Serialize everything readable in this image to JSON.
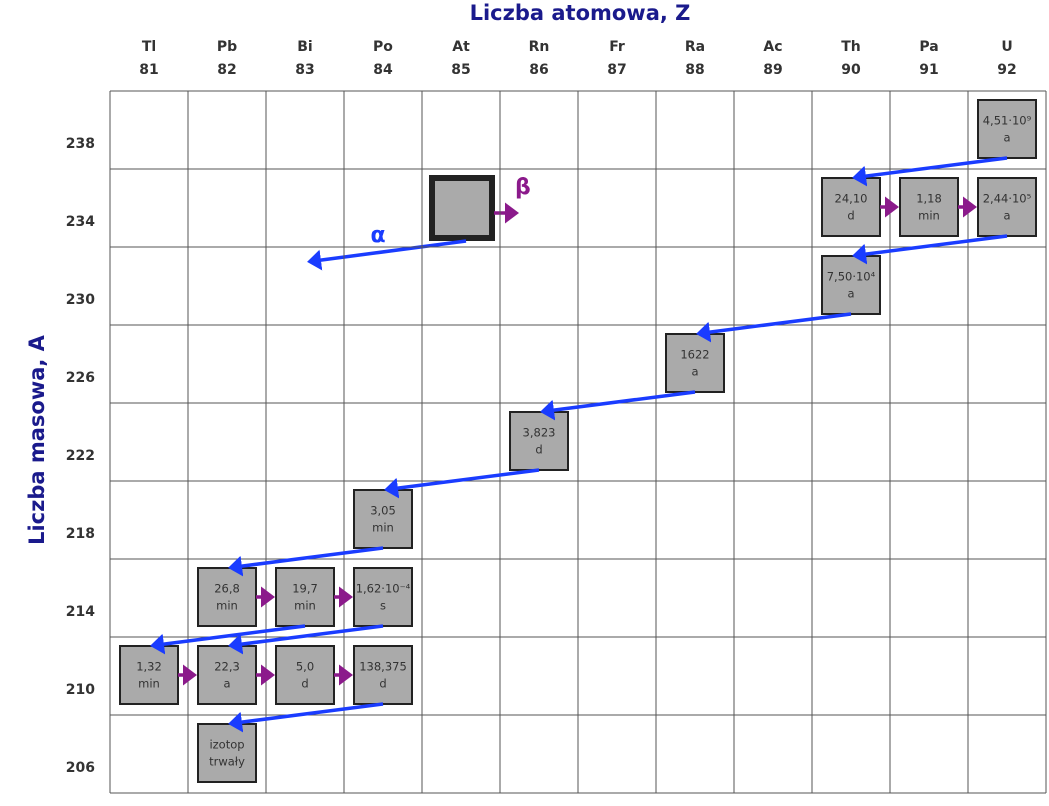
{
  "axis_x_title": "Liczba atomowa, Z",
  "axis_y_title": "Liczba masowa, A",
  "columns": [
    {
      "symbol": "Tl",
      "z": "81"
    },
    {
      "symbol": "Pb",
      "z": "82"
    },
    {
      "symbol": "Bi",
      "z": "83"
    },
    {
      "symbol": "Po",
      "z": "84"
    },
    {
      "symbol": "At",
      "z": "85"
    },
    {
      "symbol": "Rn",
      "z": "86"
    },
    {
      "symbol": "Fr",
      "z": "87"
    },
    {
      "symbol": "Ra",
      "z": "88"
    },
    {
      "symbol": "Ac",
      "z": "89"
    },
    {
      "symbol": "Th",
      "z": "90"
    },
    {
      "symbol": "Pa",
      "z": "91"
    },
    {
      "symbol": "U",
      "z": "92"
    }
  ],
  "rows": [
    "238",
    "234",
    "230",
    "226",
    "222",
    "218",
    "214",
    "210",
    "206"
  ],
  "nodes": [
    {
      "lines": [
        "4,51·10⁹",
        "a"
      ]
    },
    {
      "lines": [
        "24,10",
        "d"
      ]
    },
    {
      "lines": [
        "1,18",
        "min"
      ]
    },
    {
      "lines": [
        "2,44·10⁵",
        "a"
      ]
    },
    {
      "lines": [
        "7,50·10⁴",
        "a"
      ]
    },
    {
      "lines": [
        "1622",
        "a"
      ]
    },
    {
      "lines": [
        "3,823",
        "d"
      ]
    },
    {
      "lines": [
        "3,05",
        "min"
      ]
    },
    {
      "lines": [
        "26,8",
        "min"
      ]
    },
    {
      "lines": [
        "19,7",
        "min"
      ]
    },
    {
      "lines": [
        "1,62·10⁻⁴",
        "s"
      ]
    },
    {
      "lines": [
        "1,32",
        "min"
      ]
    },
    {
      "lines": [
        "22,3",
        "a"
      ]
    },
    {
      "lines": [
        "5,0",
        "d"
      ]
    },
    {
      "lines": [
        "138,375",
        "d"
      ]
    },
    {
      "lines": [
        "izotop",
        "trwały"
      ]
    }
  ],
  "legend": {
    "alpha": "α",
    "beta": "β"
  }
}
